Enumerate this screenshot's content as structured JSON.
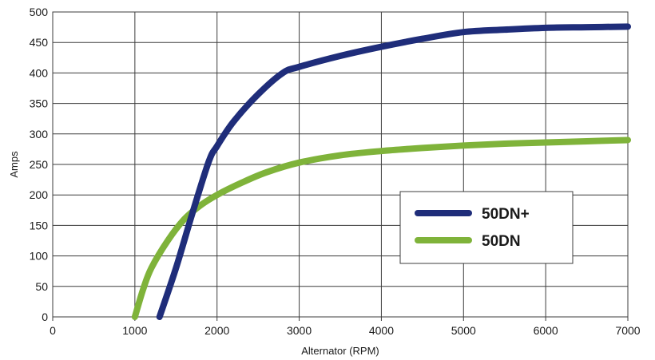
{
  "chart_data": {
    "type": "line",
    "title": "",
    "xlabel": "Alternator (RPM)",
    "ylabel": "Amps",
    "xlim": [
      0,
      7000
    ],
    "ylim": [
      0,
      500
    ],
    "xticks": [
      0,
      1000,
      2000,
      3000,
      4000,
      5000,
      6000,
      7000
    ],
    "yticks": [
      0,
      50,
      100,
      150,
      200,
      250,
      300,
      350,
      400,
      450,
      500
    ],
    "grid": true,
    "legend_position": "center-right",
    "series": [
      {
        "name": "50DN+",
        "color": "#1f2d7a",
        "x": [
          1300,
          1500,
          1700,
          1900,
          2000,
          2200,
          2500,
          2800,
          3000,
          3500,
          4000,
          4500,
          5000,
          5500,
          6000,
          6500,
          7000
        ],
        "y": [
          0,
          80,
          170,
          255,
          280,
          320,
          365,
          400,
          410,
          428,
          443,
          456,
          467,
          471,
          474,
          475,
          476
        ]
      },
      {
        "name": "50DN",
        "color": "#7fb33a",
        "x": [
          1000,
          1100,
          1200,
          1400,
          1600,
          1800,
          2000,
          2300,
          2600,
          3000,
          3500,
          4000,
          4500,
          5000,
          5500,
          6000,
          6500,
          7000
        ],
        "y": [
          0,
          45,
          80,
          125,
          160,
          183,
          200,
          220,
          237,
          253,
          265,
          272,
          277,
          281,
          284,
          286,
          288,
          290
        ]
      }
    ]
  }
}
